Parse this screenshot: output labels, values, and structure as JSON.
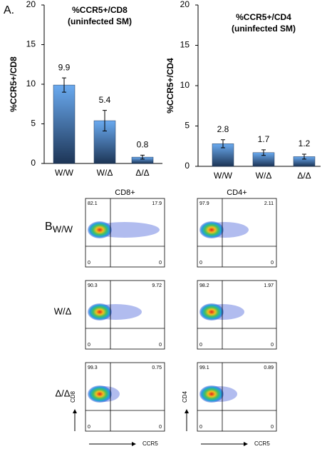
{
  "panel_labels": [
    "A.",
    "B."
  ],
  "chart_data": [
    {
      "type": "bar",
      "title": [
        "%CCR5+/CD8",
        "(uninfected SM)"
      ],
      "y_label": "%CCR5+/CD8",
      "categories": [
        "W/W",
        "W/Δ",
        "Δ/Δ"
      ],
      "values": [
        9.9,
        5.4,
        0.8
      ],
      "errors": [
        0.9,
        1.3,
        0.25
      ],
      "color": "#5b9be0",
      "ylim": [
        0,
        20
      ],
      "yticks": [
        0,
        5,
        10,
        15,
        20
      ]
    },
    {
      "type": "bar",
      "title": [
        "%CCR5+/CD4",
        "(uninfected SM)"
      ],
      "y_label": "%CCR5+/CD4",
      "categories": [
        "W/W",
        "W/Δ",
        "Δ/Δ"
      ],
      "values": [
        2.8,
        1.7,
        1.2
      ],
      "errors": [
        0.5,
        0.35,
        0.3
      ],
      "color": "#5b9be0",
      "ylim": [
        0,
        20
      ],
      "yticks": [
        0,
        5,
        10,
        15,
        20
      ]
    }
  ],
  "flow": {
    "columns": [
      "CD8+",
      "CD4+"
    ],
    "rows": [
      "W/W",
      "W/Δ",
      "Δ/Δ"
    ],
    "quadrants": [
      [
        [
          82.1,
          17.9,
          0,
          0
        ],
        [
          90.3,
          9.72,
          0,
          0
        ],
        [
          99.3,
          0.75,
          0,
          0
        ]
      ],
      [
        [
          97.9,
          2.11,
          0,
          0
        ],
        [
          98.2,
          1.97,
          0,
          0
        ],
        [
          99.1,
          0.89,
          0,
          0
        ]
      ]
    ],
    "y_axis_labels": [
      "CD8",
      "CD4"
    ],
    "x_axis_label": "CCR5"
  }
}
